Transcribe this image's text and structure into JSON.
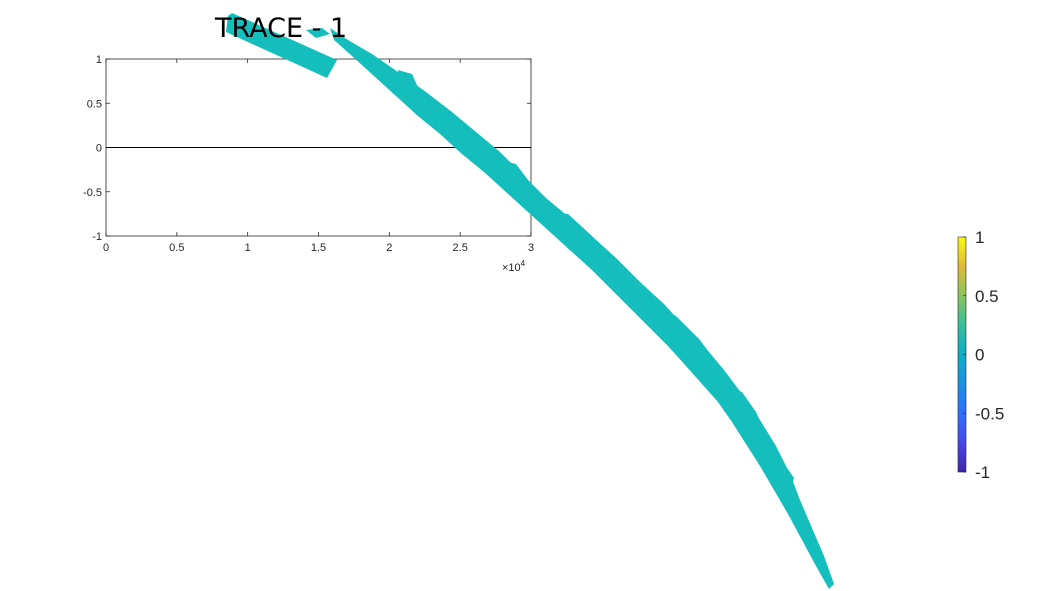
{
  "chart_data": {
    "type": "line",
    "title": "TRACE - 1",
    "xlabel": "",
    "ylabel": "",
    "xlim": [
      0,
      30000
    ],
    "ylim": [
      -1,
      1
    ],
    "x_tick_labels": [
      "0",
      "0.5",
      "1",
      "1.5",
      "2",
      "2.5",
      "3"
    ],
    "y_tick_labels": [
      "1",
      "0.5",
      "0",
      "-0.5",
      "-1"
    ],
    "x_exponent_label": "×10",
    "x_exponent_power": "4",
    "series": [
      {
        "x": [
          0,
          30000
        ],
        "y": [
          0,
          0
        ],
        "color": "#000000"
      }
    ],
    "grid": false,
    "colorbar": {
      "limits": [
        -1,
        1
      ],
      "tick_labels": [
        "1",
        "0.5",
        "0",
        "-0.5",
        "-1"
      ],
      "colormap": "parula"
    },
    "trace_color": "#13bebc"
  }
}
